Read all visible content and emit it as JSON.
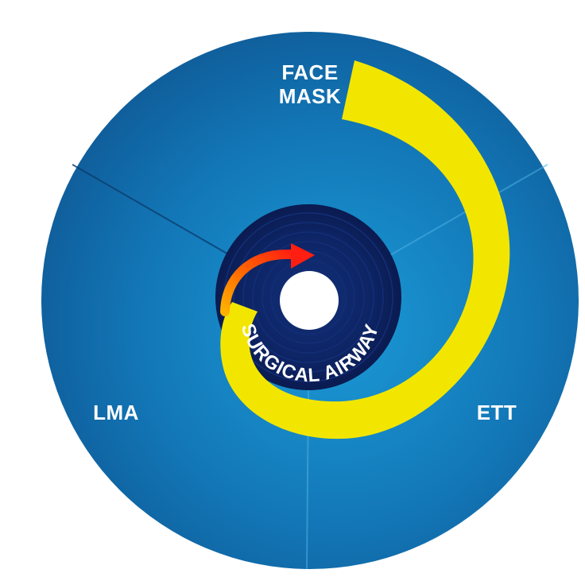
{
  "diagram": {
    "labels": {
      "face_mask_line1": "FACE",
      "face_mask_line2": "MASK",
      "lma": "LMA",
      "ett": "ETT",
      "center": "SURGICAL AIRWAY"
    },
    "colors": {
      "disc_edge": "#0e4f86",
      "disc_mid": "#1373b2",
      "disc_light": "#1a8fcc",
      "center_dark": "#0c1f5c",
      "spiral": "#f2e600",
      "arrow_orange": "#ff6a00",
      "arrow_red": "#ff2a1a",
      "hole": "#ffffff"
    }
  }
}
